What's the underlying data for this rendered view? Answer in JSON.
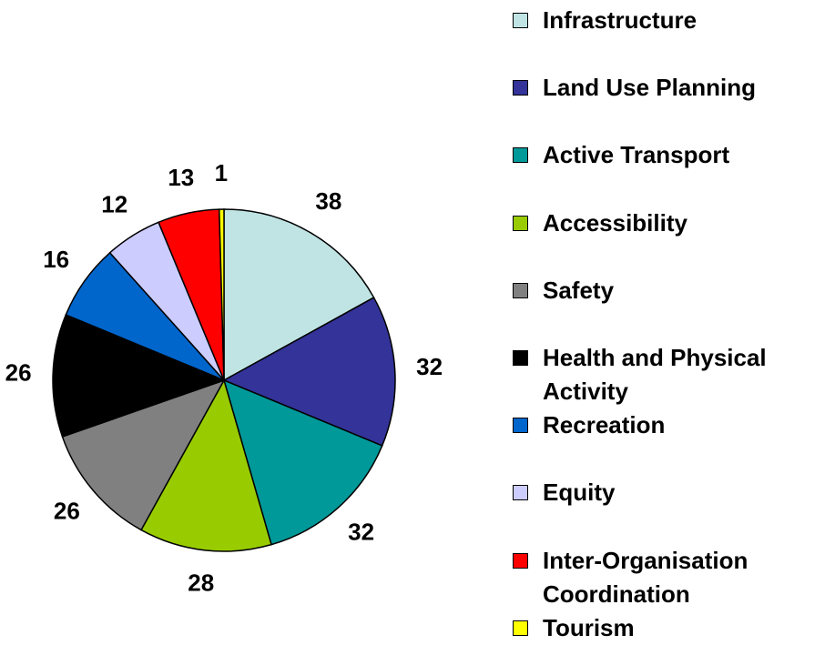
{
  "chart_data": {
    "type": "pie",
    "categories": [
      "Infrastructure",
      "Land Use Planning",
      "Active Transport",
      "Accessibility",
      "Safety",
      "Health and Physical Activity",
      "Recreation",
      "Equity",
      "Inter-Organisation Coordination",
      "Tourism"
    ],
    "values": [
      38,
      32,
      32,
      28,
      26,
      26,
      16,
      12,
      13,
      1
    ],
    "colors": [
      "#c0e4e4",
      "#333399",
      "#009999",
      "#99cc00",
      "#808080",
      "#000000",
      "#0066cc",
      "#ccccff",
      "#ff0000",
      "#ffff00"
    ],
    "legend": "right"
  }
}
